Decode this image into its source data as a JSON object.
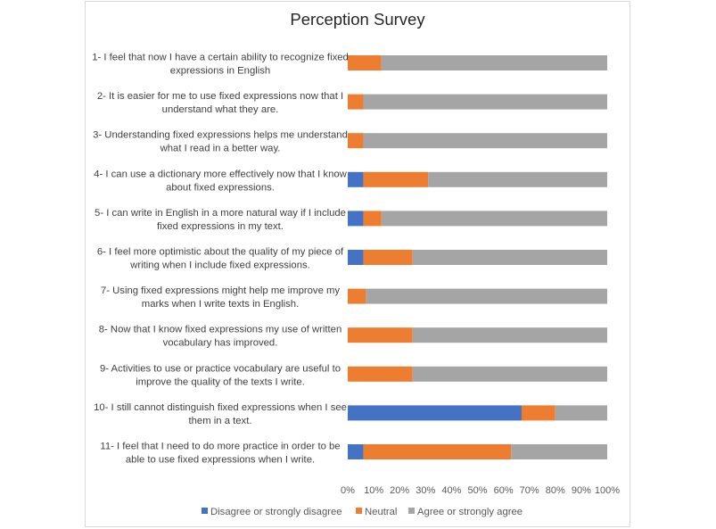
{
  "chart_data": {
    "type": "bar",
    "orientation": "horizontal",
    "stacked": "percent",
    "title": "Perception Survey",
    "categories": [
      [
        "1- I feel that now I have a certain ability to recognize fixed",
        "expressions in English"
      ],
      [
        "2- It is easier for me to use fixed expressions now that I",
        "understand what they are."
      ],
      [
        "3- Understanding fixed expressions helps me understand",
        "what I read in a better way."
      ],
      [
        "4- I can use a dictionary more effectively now that I know",
        "about fixed expressions."
      ],
      [
        "5- I can write in English in a more natural way if I include",
        "fixed expressions in my text."
      ],
      [
        "6- I feel more optimistic about the quality of my piece of",
        "writing when I include fixed expressions."
      ],
      [
        "7- Using fixed expressions might help me improve my",
        "marks when I write texts in English."
      ],
      [
        "8- Now that I know fixed expressions my use of written",
        "vocabulary has improved."
      ],
      [
        "9- Activities to use or practice vocabulary are useful to",
        "improve the quality of the texts I write."
      ],
      [
        "10- I still cannot distinguish fixed expressions when I see",
        "them in a text."
      ],
      [
        "11- I feel that I need to do more practice in order to be",
        "able to use fixed expressions when I write."
      ]
    ],
    "series": [
      {
        "name": "Disagree or strongly disagree",
        "color": "#4472c4",
        "values": [
          0,
          0,
          0,
          6,
          6,
          6,
          0,
          0,
          0,
          67,
          6
        ]
      },
      {
        "name": "Neutral",
        "color": "#ed7d31",
        "values": [
          13,
          6,
          6,
          25,
          7,
          19,
          7,
          25,
          25,
          13,
          57
        ]
      },
      {
        "name": "Agree or strongly agree",
        "color": "#a5a5a5",
        "values": [
          87,
          94,
          94,
          69,
          87,
          75,
          93,
          75,
          75,
          20,
          37
        ]
      }
    ],
    "x_ticks": [
      "0%",
      "10%",
      "20%",
      "30%",
      "40%",
      "50%",
      "60%",
      "70%",
      "80%",
      "90%",
      "100%"
    ],
    "xlim": [
      0,
      100
    ],
    "grid": false,
    "legend_position": "bottom"
  }
}
